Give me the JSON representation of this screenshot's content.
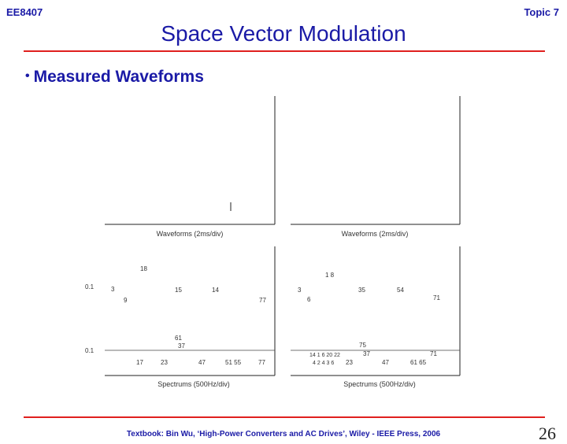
{
  "header": {
    "course": "EE8407",
    "topic": "Topic 7",
    "title": "Space Vector Modulation"
  },
  "bullet": {
    "text": "Measured Waveforms"
  },
  "figure": {
    "top_left_caption": "Waveforms  (2ms/div)",
    "top_right_caption": "Waveforms  (2ms/div)",
    "bottom_left_caption": "Spectrums  (500Hz/div)",
    "bottom_right_caption": "Spectrums  (500Hz/div)",
    "level_labels": [
      "0.1",
      "0.1"
    ],
    "left_upper_labels": [
      "18",
      "3",
      "15",
      "14",
      "9",
      "77"
    ],
    "left_lower_labels": [
      "61",
      "37",
      "17",
      "23",
      "47",
      "51 55",
      "77"
    ],
    "right_upper_labels": [
      "1 8",
      "3",
      "35",
      "54",
      "6",
      "71"
    ],
    "right_lower_labels": [
      "75",
      "14 1 6 20 22",
      "37",
      "71",
      "4 2  4  3  6",
      "23",
      "47",
      "61 65"
    ]
  },
  "footer": {
    "text": "Textbook: Bin Wu, ‘High-Power Converters and AC Drives’, Wiley - IEEE Press, 2006"
  },
  "page_number": "26",
  "colors": {
    "accent": "#1a1aa6",
    "rule": "#e0201e"
  }
}
